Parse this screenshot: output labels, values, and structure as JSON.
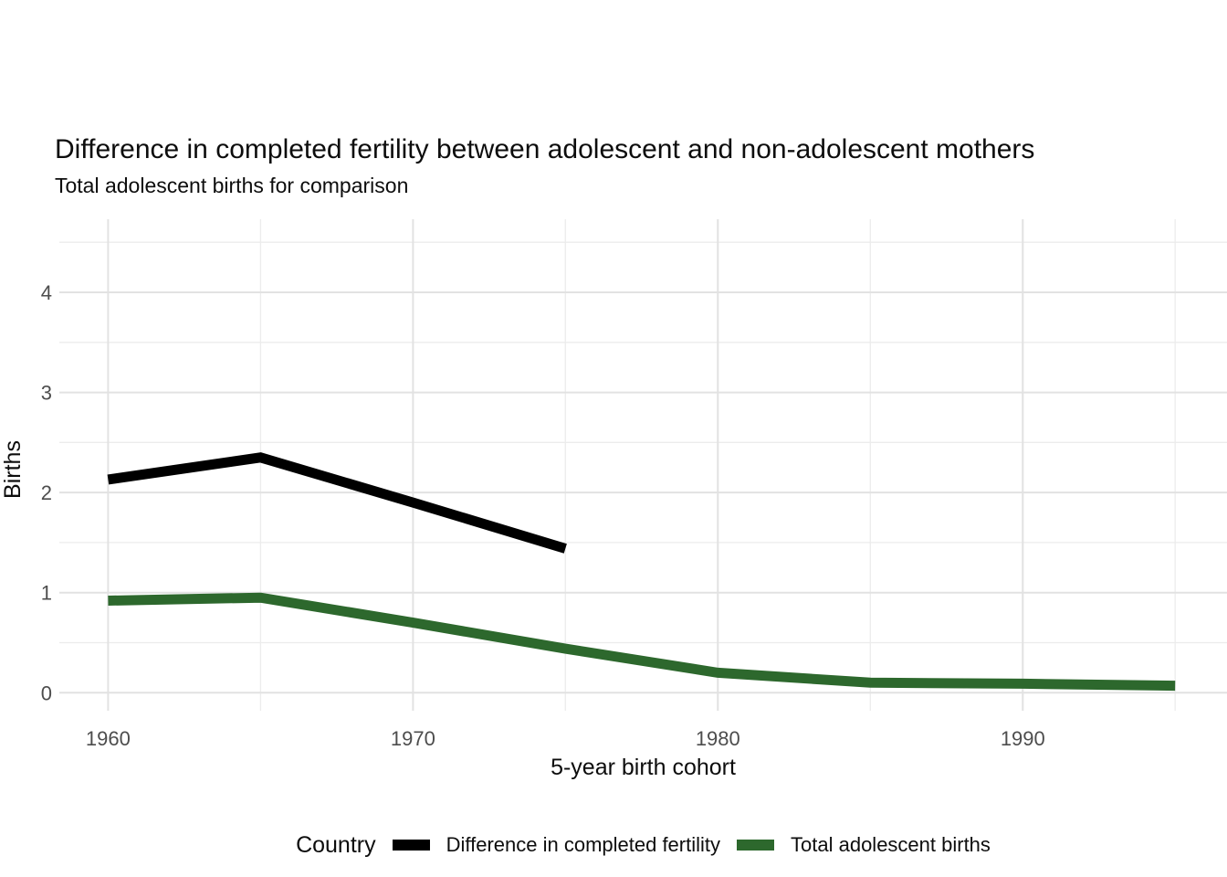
{
  "chart_data": {
    "type": "line",
    "title": "Difference in completed fertility between adolescent and non-adolescent mothers",
    "subtitle": "Total adolescent births for comparison",
    "xlabel": "5-year birth cohort",
    "ylabel": "Births",
    "x": [
      1960,
      1965,
      1970,
      1975,
      1980,
      1985,
      1990,
      1995
    ],
    "series": [
      {
        "name": "Difference in completed fertility",
        "color": "#000000",
        "values": [
          2.13,
          2.35,
          1.9,
          1.44,
          null,
          null,
          null,
          null
        ]
      },
      {
        "name": "Total adolescent births",
        "color": "#2d682d",
        "values": [
          0.92,
          0.95,
          0.7,
          0.44,
          0.2,
          0.1,
          0.09,
          0.07
        ]
      }
    ],
    "x_major_ticks": [
      1960,
      1970,
      1980,
      1990
    ],
    "x_minor_ticks": [
      1965,
      1975,
      1985,
      1995
    ],
    "y_major_ticks": [
      0,
      1,
      2,
      3,
      4
    ],
    "y_minor_ticks": [
      0.5,
      1.5,
      2.5,
      3.5,
      4.5
    ],
    "xlim": [
      1958.4,
      1996.7
    ],
    "ylim": [
      -0.18,
      4.73
    ],
    "grid": "on",
    "legend": {
      "title": "Country",
      "position": "bottom"
    },
    "colors": {
      "grid_major": "#e2e2e2",
      "grid_minor": "#ececec",
      "tick_text": "#4d4d4d",
      "axis_title_text": "#0d0d0d"
    }
  }
}
